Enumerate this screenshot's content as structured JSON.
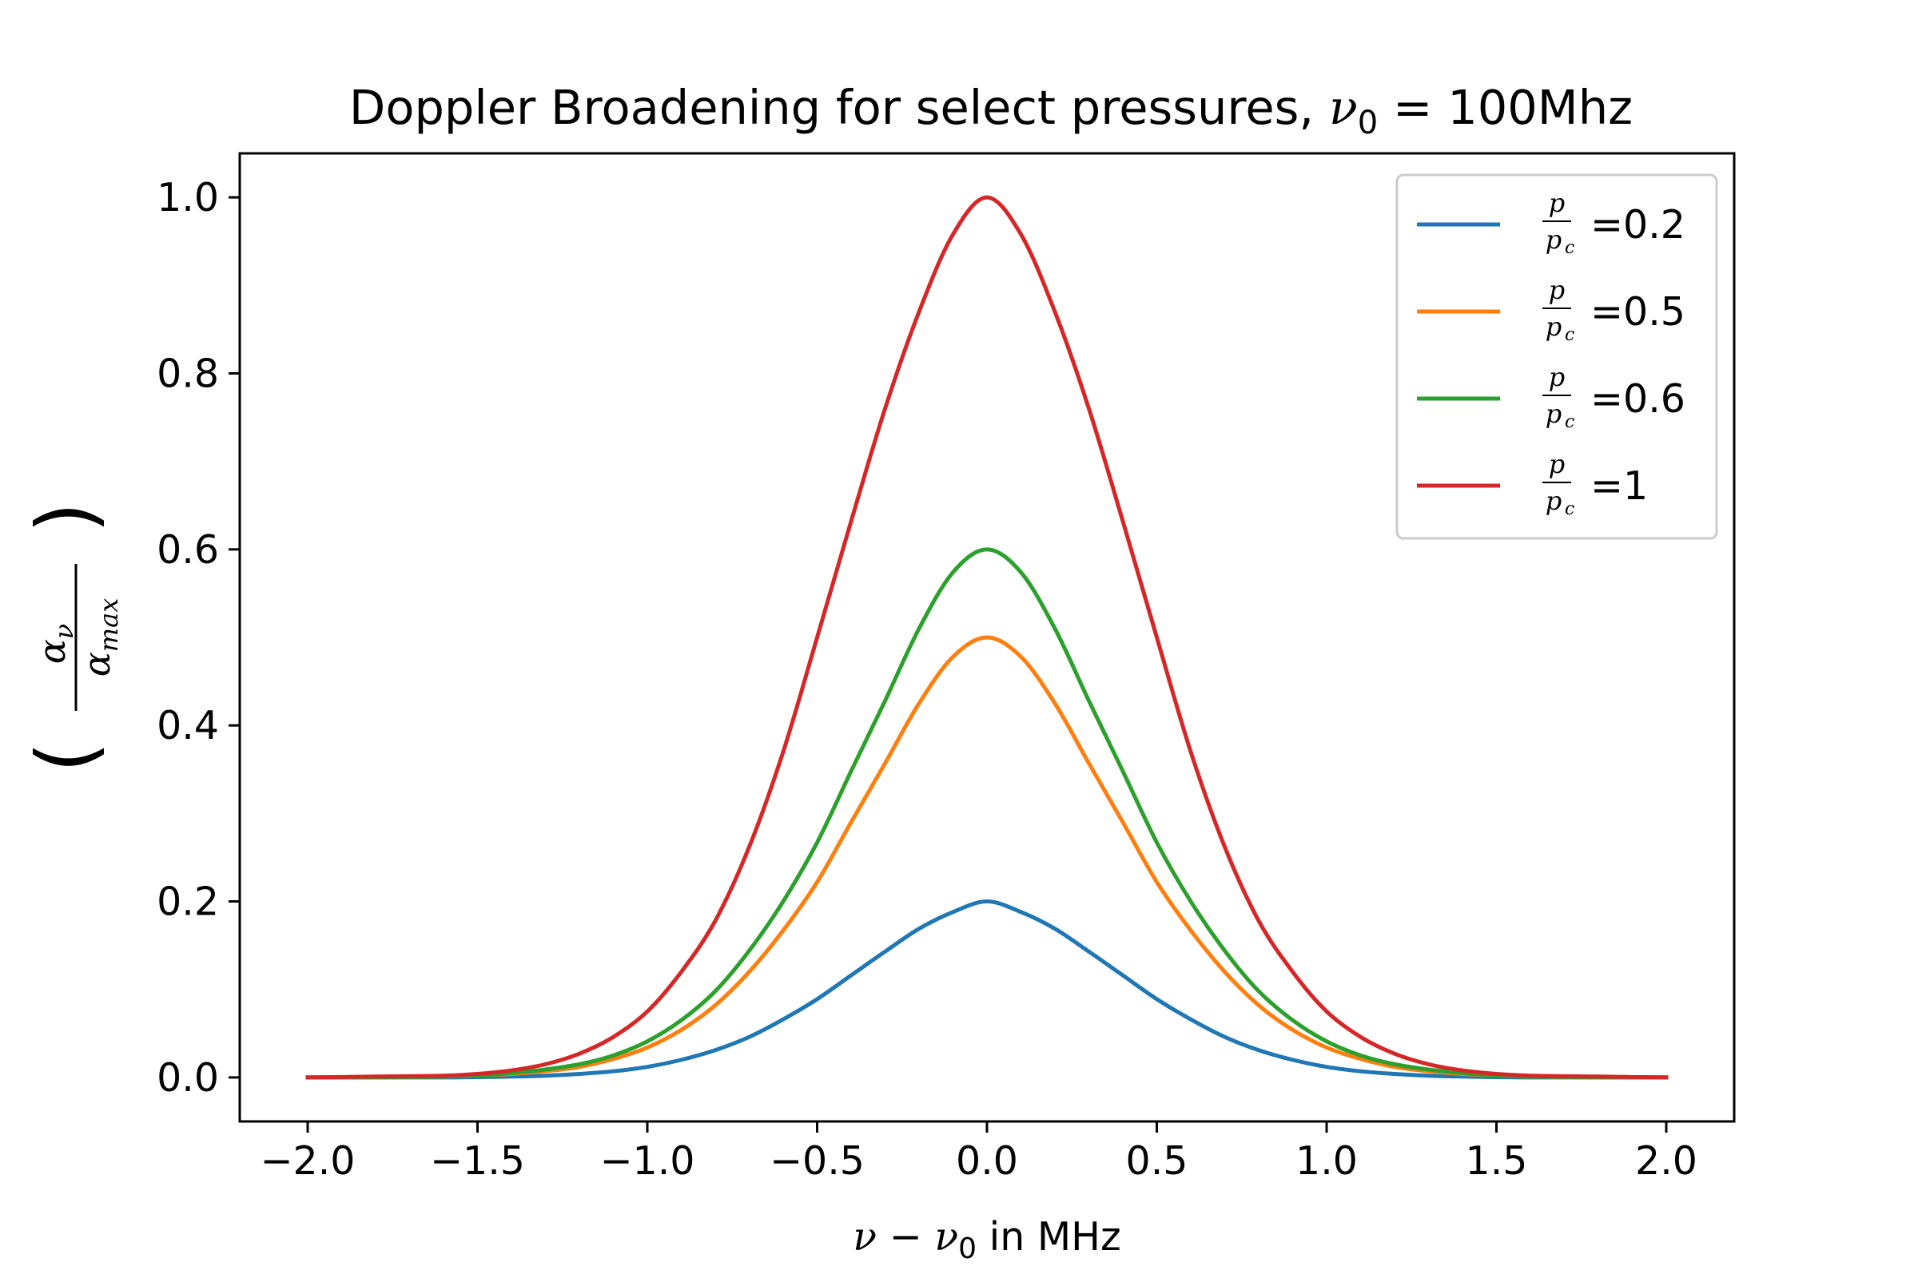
{
  "chart_data": {
    "type": "line",
    "title": "Doppler Broadening for select pressures, ν₀ = 100Mhz",
    "xlabel": "ν − ν₀ in MHz",
    "ylabel": "(αν / αmax)",
    "xlim": [
      -2.2,
      2.2
    ],
    "ylim": [
      -0.05,
      1.05
    ],
    "xticks": [
      -2.0,
      -1.5,
      -1.0,
      -0.5,
      0.0,
      0.5,
      1.0,
      1.5,
      2.0
    ],
    "xtick_labels": [
      "−2.0",
      "−1.5",
      "−1.0",
      "−0.5",
      "0.0",
      "0.5",
      "1.0",
      "1.5",
      "2.0"
    ],
    "yticks": [
      0.0,
      0.2,
      0.4,
      0.6,
      0.8,
      1.0
    ],
    "ytick_labels": [
      "0.0",
      "0.2",
      "0.4",
      "0.6",
      "0.8",
      "1.0"
    ],
    "grid": false,
    "legend_position": "top-right",
    "x": [
      -2.0,
      -1.8,
      -1.6,
      -1.5,
      -1.4,
      -1.3,
      -1.2,
      -1.1,
      -1.0,
      -0.9,
      -0.8,
      -0.7,
      -0.6,
      -0.5,
      -0.4,
      -0.3,
      -0.2,
      -0.1,
      0.0,
      0.1,
      0.2,
      0.3,
      0.4,
      0.5,
      0.6,
      0.7,
      0.8,
      0.9,
      1.0,
      1.1,
      1.2,
      1.3,
      1.4,
      1.5,
      1.6,
      1.8,
      2.0
    ],
    "series": [
      {
        "name": "p/pc =0.2",
        "legend_label": "=0.2",
        "color": "#1f77b4",
        "values": [
          0.0,
          0.0,
          0.0,
          0.0004,
          0.001,
          0.002,
          0.004,
          0.007,
          0.012,
          0.02,
          0.031,
          0.046,
          0.066,
          0.089,
          0.116,
          0.143,
          0.169,
          0.188,
          0.2,
          0.188,
          0.169,
          0.143,
          0.116,
          0.089,
          0.066,
          0.046,
          0.031,
          0.02,
          0.012,
          0.007,
          0.004,
          0.002,
          0.001,
          0.0004,
          0.0,
          0.0,
          0.0
        ]
      },
      {
        "name": "p/pc =0.5",
        "legend_label": "=0.5",
        "color": "#ff7f0e",
        "values": [
          0.0,
          0.0,
          0.001,
          0.002,
          0.004,
          0.007,
          0.012,
          0.021,
          0.034,
          0.054,
          0.082,
          0.12,
          0.167,
          0.222,
          0.29,
          0.357,
          0.425,
          0.478,
          0.5,
          0.478,
          0.425,
          0.357,
          0.29,
          0.222,
          0.167,
          0.12,
          0.082,
          0.054,
          0.034,
          0.021,
          0.012,
          0.007,
          0.004,
          0.002,
          0.001,
          0.0,
          0.0
        ]
      },
      {
        "name": "p/pc =0.6",
        "legend_label": "=0.6",
        "color": "#2ca02c",
        "values": [
          0.0,
          0.0,
          0.001,
          0.002,
          0.005,
          0.009,
          0.015,
          0.025,
          0.041,
          0.065,
          0.098,
          0.144,
          0.2,
          0.267,
          0.348,
          0.428,
          0.51,
          0.574,
          0.6,
          0.574,
          0.51,
          0.428,
          0.348,
          0.267,
          0.2,
          0.144,
          0.098,
          0.065,
          0.041,
          0.025,
          0.015,
          0.009,
          0.005,
          0.002,
          0.001,
          0.0,
          0.0
        ]
      },
      {
        "name": "p/pc =1",
        "legend_label": "=1",
        "color": "#d62728",
        "values": [
          0.0,
          0.001,
          0.002,
          0.004,
          0.008,
          0.015,
          0.027,
          0.046,
          0.075,
          0.12,
          0.178,
          0.262,
          0.37,
          0.5,
          0.632,
          0.76,
          0.87,
          0.958,
          1.0,
          0.958,
          0.87,
          0.76,
          0.632,
          0.5,
          0.37,
          0.262,
          0.178,
          0.12,
          0.075,
          0.046,
          0.027,
          0.015,
          0.008,
          0.004,
          0.002,
          0.001,
          0.0
        ]
      }
    ]
  },
  "title_parts": {
    "main": "Doppler Broadening for select pressures,",
    "nu": "ν",
    "sub0": "0",
    "rest": " = 100Mhz"
  },
  "xlabel_parts": {
    "nu": "ν",
    "minus": " − ",
    "nu2": "ν",
    "sub0": "0",
    "rest": " in MHz"
  },
  "ylabel_parts": {
    "alpha": "α",
    "nu": "ν",
    "alpha2": "α",
    "max": "max"
  },
  "legend_parts": {
    "p": "p",
    "pc": "p",
    "c": "c"
  }
}
